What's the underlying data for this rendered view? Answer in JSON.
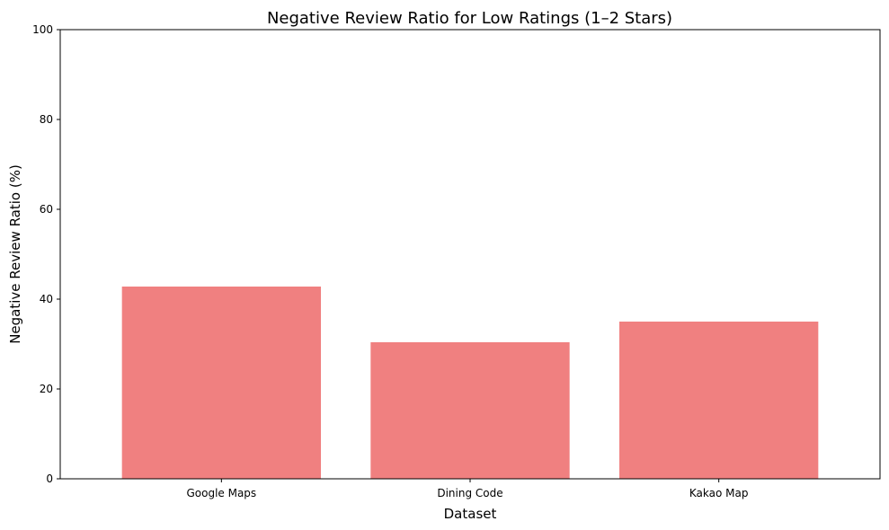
{
  "chart_data": {
    "type": "bar",
    "title": "Negative Review Ratio for Low Ratings (1–2 Stars)",
    "xlabel": "Dataset",
    "ylabel": "Negative Review Ratio (%)",
    "categories": [
      "Google Maps",
      "Dining Code",
      "Kakao Map"
    ],
    "values": [
      42.8,
      30.4,
      35.0
    ],
    "ylim": [
      0,
      100
    ],
    "yticks": [
      0,
      20,
      40,
      60,
      80,
      100
    ],
    "grid": false,
    "legend": "none",
    "bar_color": "#f08080"
  }
}
